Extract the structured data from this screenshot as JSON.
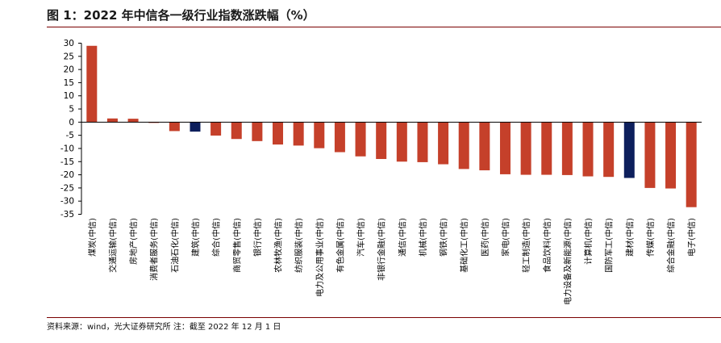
{
  "title": "图 1：2022 年中信各一级行业指数涨跌幅（%）",
  "source": "资料来源：wind，光大证券研究所  注：截至 2022 年 12 月 1 日",
  "colors": {
    "default_bar": "#c5402a",
    "highlight_bar": "#0d1f5c",
    "accent_rule": "#7a0000"
  },
  "chart_data": {
    "type": "bar",
    "title": "图 1：2022 年中信各一级行业指数涨跌幅（%）",
    "xlabel": "",
    "ylabel": "",
    "ylim": [
      -35,
      30
    ],
    "yticks": [
      30,
      25,
      20,
      15,
      10,
      5,
      0,
      -5,
      -10,
      -15,
      -20,
      -25,
      -30,
      -35
    ],
    "grid": false,
    "categories": [
      "煤炭(中信)",
      "交通运输(中信)",
      "房地产(中信)",
      "消费者服务(中信)",
      "石油石化(中信)",
      "建筑(中信)",
      "综合(中信)",
      "商贸零售(中信)",
      "银行(中信)",
      "农林牧渔(中信)",
      "纺织服装(中信)",
      "电力及公用事业(中信)",
      "有色金属(中信)",
      "汽车(中信)",
      "非银行金融(中信)",
      "通信(中信)",
      "机械(中信)",
      "钢铁(中信)",
      "基础化工(中信)",
      "医药(中信)",
      "家电(中信)",
      "轻工制造(中信)",
      "食品饮料(中信)",
      "电力设备及新能源(中信)",
      "计算机(中信)",
      "国防军工(中信)",
      "建材(中信)",
      "传媒(中信)",
      "综合金融(中信)",
      "电子(中信)"
    ],
    "values": [
      29.0,
      1.4,
      1.3,
      -0.3,
      -3.4,
      -3.6,
      -5.1,
      -6.4,
      -7.2,
      -8.5,
      -8.9,
      -9.9,
      -11.4,
      -13.0,
      -14.0,
      -15.0,
      -15.2,
      -16.0,
      -17.8,
      -18.3,
      -19.8,
      -20.0,
      -20.0,
      -20.1,
      -20.6,
      -20.8,
      -21.2,
      -25.0,
      -25.2,
      -32.3
    ],
    "highlight": [
      "建筑(中信)",
      "建材(中信)"
    ]
  }
}
